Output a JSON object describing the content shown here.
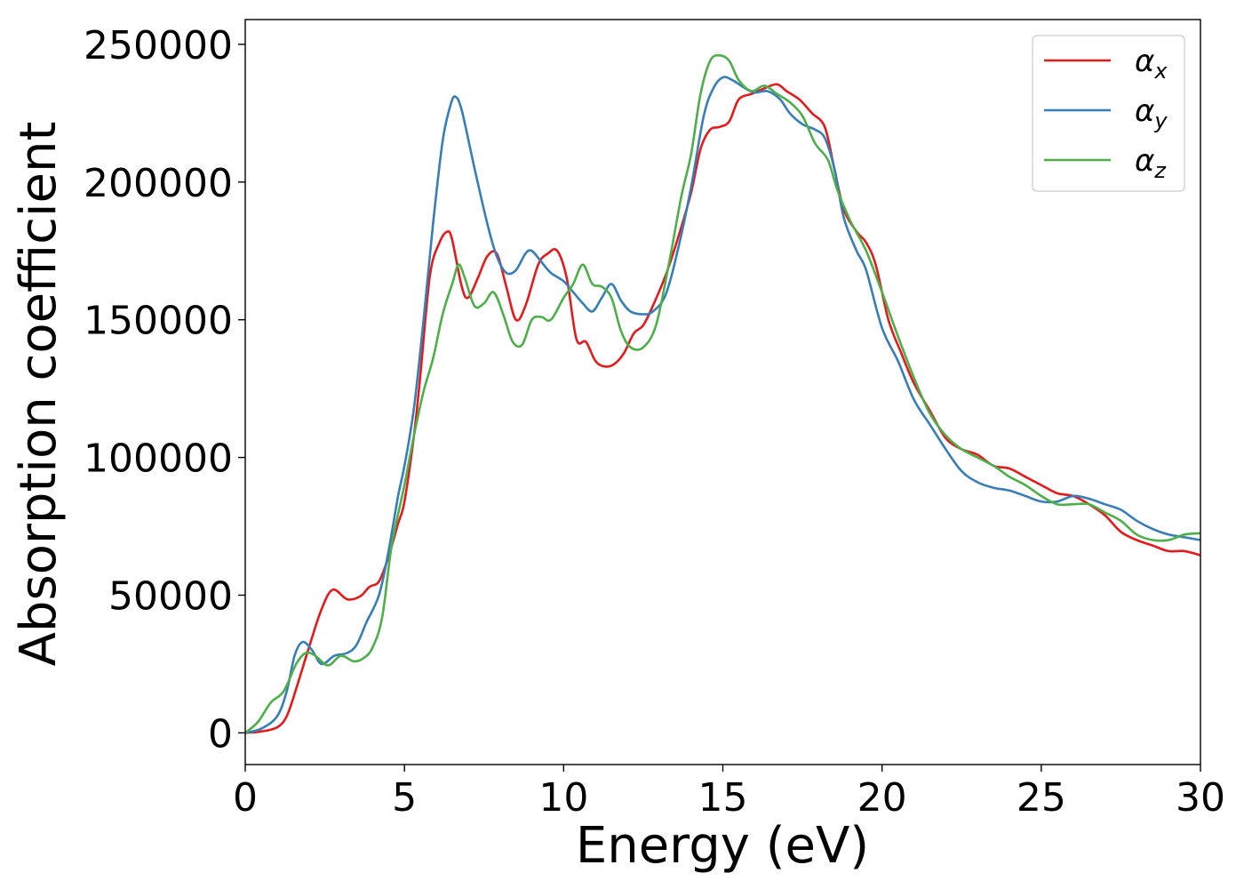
{
  "chart_data": {
    "type": "line",
    "title": "",
    "xlabel": "Energy (eV)",
    "ylabel": "Absorption coefficient",
    "xlim": [
      0,
      30
    ],
    "ylim": [
      -11500,
      259000
    ],
    "xticks": [
      0,
      5,
      10,
      15,
      20,
      25,
      30
    ],
    "xtick_labels": [
      "0",
      "5",
      "10",
      "15",
      "20",
      "25",
      "30"
    ],
    "yticks": [
      0,
      50000,
      100000,
      150000,
      200000,
      250000
    ],
    "ytick_labels": [
      "0",
      "50000",
      "100000",
      "150000",
      "200000",
      "250000"
    ],
    "grid": false,
    "legend_position": "top-right",
    "series": [
      {
        "name": "α",
        "subscript": "x",
        "color": "#e41a1c",
        "points": [
          [
            0,
            0
          ],
          [
            0.5,
            500
          ],
          [
            1,
            2000
          ],
          [
            1.3,
            6000
          ],
          [
            1.6,
            16000
          ],
          [
            2,
            31000
          ],
          [
            2.4,
            45000
          ],
          [
            2.75,
            52000
          ],
          [
            3.2,
            48500
          ],
          [
            3.6,
            49500
          ],
          [
            3.9,
            53000
          ],
          [
            4.2,
            55000
          ],
          [
            4.5,
            64000
          ],
          [
            4.8,
            76000
          ],
          [
            5,
            84000
          ],
          [
            5.3,
            108000
          ],
          [
            5.5,
            130000
          ],
          [
            5.8,
            166000
          ],
          [
            6.1,
            178000
          ],
          [
            6.35,
            182000
          ],
          [
            6.5,
            179000
          ],
          [
            6.8,
            162000
          ],
          [
            7,
            158000
          ],
          [
            7.3,
            165000
          ],
          [
            7.6,
            173000
          ],
          [
            7.9,
            174000
          ],
          [
            8.2,
            162000
          ],
          [
            8.5,
            150000
          ],
          [
            8.8,
            155000
          ],
          [
            9.2,
            170000
          ],
          [
            9.5,
            174000
          ],
          [
            9.8,
            175000
          ],
          [
            10.1,
            165000
          ],
          [
            10.4,
            143000
          ],
          [
            10.7,
            142000
          ],
          [
            11,
            135000
          ],
          [
            11.3,
            133000
          ],
          [
            11.6,
            134000
          ],
          [
            11.9,
            138000
          ],
          [
            12.2,
            145000
          ],
          [
            12.5,
            148000
          ],
          [
            12.8,
            155000
          ],
          [
            13.2,
            166000
          ],
          [
            13.6,
            180000
          ],
          [
            14,
            196000
          ],
          [
            14.3,
            212000
          ],
          [
            14.6,
            219000
          ],
          [
            14.9,
            220000
          ],
          [
            15.2,
            222000
          ],
          [
            15.5,
            230000
          ],
          [
            15.9,
            232000
          ],
          [
            16.3,
            234000
          ],
          [
            16.7,
            235500
          ],
          [
            17,
            233000
          ],
          [
            17.4,
            230000
          ],
          [
            17.8,
            225000
          ],
          [
            18.2,
            220000
          ],
          [
            18.5,
            205000
          ],
          [
            18.8,
            190000
          ],
          [
            19.2,
            182000
          ],
          [
            19.5,
            178000
          ],
          [
            19.8,
            170000
          ],
          [
            20.2,
            150000
          ],
          [
            20.6,
            138000
          ],
          [
            21,
            127000
          ],
          [
            21.5,
            117000
          ],
          [
            22,
            107000
          ],
          [
            22.5,
            103000
          ],
          [
            23,
            101000
          ],
          [
            23.5,
            97000
          ],
          [
            24,
            96000
          ],
          [
            24.5,
            93000
          ],
          [
            25,
            90000
          ],
          [
            25.5,
            87000
          ],
          [
            26,
            86000
          ],
          [
            26.5,
            83000
          ],
          [
            27,
            79000
          ],
          [
            27.5,
            73000
          ],
          [
            28,
            70000
          ],
          [
            28.5,
            68000
          ],
          [
            29,
            66000
          ],
          [
            29.5,
            66000
          ],
          [
            30,
            64500
          ]
        ]
      },
      {
        "name": "α",
        "subscript": "y",
        "color": "#377eb8",
        "points": [
          [
            0,
            0
          ],
          [
            0.5,
            1500
          ],
          [
            1,
            6000
          ],
          [
            1.3,
            15000
          ],
          [
            1.55,
            28000
          ],
          [
            1.8,
            33000
          ],
          [
            2.1,
            30000
          ],
          [
            2.4,
            25000
          ],
          [
            2.8,
            28000
          ],
          [
            3.2,
            29000
          ],
          [
            3.5,
            32000
          ],
          [
            3.8,
            40000
          ],
          [
            4.2,
            50000
          ],
          [
            4.5,
            66000
          ],
          [
            4.8,
            86000
          ],
          [
            5,
            97000
          ],
          [
            5.3,
            118000
          ],
          [
            5.6,
            150000
          ],
          [
            5.9,
            185000
          ],
          [
            6.2,
            215000
          ],
          [
            6.45,
            228000
          ],
          [
            6.6,
            231000
          ],
          [
            6.8,
            226000
          ],
          [
            7.2,
            205000
          ],
          [
            7.6,
            185000
          ],
          [
            7.9,
            173000
          ],
          [
            8.2,
            167000
          ],
          [
            8.5,
            168000
          ],
          [
            8.8,
            174000
          ],
          [
            9,
            175000
          ],
          [
            9.3,
            171000
          ],
          [
            9.6,
            167000
          ],
          [
            10,
            164000
          ],
          [
            10.3,
            160000
          ],
          [
            10.6,
            156000
          ],
          [
            10.9,
            153000
          ],
          [
            11.2,
            158000
          ],
          [
            11.5,
            163000
          ],
          [
            11.8,
            157000
          ],
          [
            12.1,
            153000
          ],
          [
            12.5,
            152000
          ],
          [
            12.8,
            153000
          ],
          [
            13.2,
            159000
          ],
          [
            13.6,
            176000
          ],
          [
            14,
            198000
          ],
          [
            14.4,
            224000
          ],
          [
            14.7,
            234000
          ],
          [
            15,
            238000
          ],
          [
            15.3,
            237000
          ],
          [
            15.7,
            234000
          ],
          [
            16,
            232500
          ],
          [
            16.4,
            233000
          ],
          [
            16.8,
            230000
          ],
          [
            17.1,
            225000
          ],
          [
            17.5,
            221000
          ],
          [
            17.9,
            219000
          ],
          [
            18.2,
            216000
          ],
          [
            18.5,
            205000
          ],
          [
            18.8,
            187000
          ],
          [
            19.2,
            175000
          ],
          [
            19.5,
            168000
          ],
          [
            20,
            147000
          ],
          [
            20.5,
            135000
          ],
          [
            21,
            121000
          ],
          [
            21.5,
            112000
          ],
          [
            22,
            103000
          ],
          [
            22.5,
            95000
          ],
          [
            23,
            91000
          ],
          [
            23.5,
            89000
          ],
          [
            24,
            88000
          ],
          [
            24.5,
            86000
          ],
          [
            25,
            84000
          ],
          [
            25.5,
            84000
          ],
          [
            26,
            86000
          ],
          [
            26.5,
            85000
          ],
          [
            27,
            83000
          ],
          [
            27.5,
            81000
          ],
          [
            28,
            77000
          ],
          [
            28.5,
            74000
          ],
          [
            29,
            72000
          ],
          [
            29.5,
            71000
          ],
          [
            30,
            70000
          ]
        ]
      },
      {
        "name": "α",
        "subscript": "z",
        "color": "#4daf4a",
        "points": [
          [
            0,
            0
          ],
          [
            0.4,
            4000
          ],
          [
            0.8,
            11000
          ],
          [
            1.2,
            15000
          ],
          [
            1.6,
            25000
          ],
          [
            1.9,
            29000
          ],
          [
            2.2,
            28000
          ],
          [
            2.6,
            24500
          ],
          [
            3,
            28000
          ],
          [
            3.4,
            26000
          ],
          [
            3.7,
            27000
          ],
          [
            4,
            31000
          ],
          [
            4.3,
            42000
          ],
          [
            4.6,
            68000
          ],
          [
            5,
            90000
          ],
          [
            5.3,
            108000
          ],
          [
            5.6,
            124000
          ],
          [
            5.9,
            136000
          ],
          [
            6.2,
            152000
          ],
          [
            6.5,
            163000
          ],
          [
            6.7,
            170000
          ],
          [
            6.9,
            165000
          ],
          [
            7.2,
            155000
          ],
          [
            7.5,
            156000
          ],
          [
            7.8,
            160000
          ],
          [
            8.1,
            152000
          ],
          [
            8.4,
            142000
          ],
          [
            8.7,
            141000
          ],
          [
            9,
            150000
          ],
          [
            9.3,
            151000
          ],
          [
            9.6,
            150000
          ],
          [
            10,
            158000
          ],
          [
            10.3,
            163000
          ],
          [
            10.6,
            170000
          ],
          [
            10.9,
            163000
          ],
          [
            11.2,
            162000
          ],
          [
            11.5,
            158000
          ],
          [
            11.8,
            146000
          ],
          [
            12.1,
            140000
          ],
          [
            12.5,
            140000
          ],
          [
            12.9,
            148000
          ],
          [
            13.3,
            170000
          ],
          [
            13.7,
            195000
          ],
          [
            14,
            210000
          ],
          [
            14.3,
            232000
          ],
          [
            14.6,
            244000
          ],
          [
            14.9,
            246000
          ],
          [
            15.2,
            244000
          ],
          [
            15.5,
            237000
          ],
          [
            15.9,
            233000
          ],
          [
            16.3,
            235000
          ],
          [
            16.7,
            232000
          ],
          [
            17.1,
            229000
          ],
          [
            17.5,
            224000
          ],
          [
            17.9,
            214000
          ],
          [
            18.3,
            208000
          ],
          [
            18.6,
            197000
          ],
          [
            19,
            186000
          ],
          [
            19.5,
            175000
          ],
          [
            20,
            160000
          ],
          [
            20.5,
            144000
          ],
          [
            21,
            129000
          ],
          [
            21.5,
            116000
          ],
          [
            22,
            108000
          ],
          [
            22.5,
            103000
          ],
          [
            23,
            100000
          ],
          [
            23.5,
            97000
          ],
          [
            24,
            93000
          ],
          [
            24.5,
            90000
          ],
          [
            25,
            86000
          ],
          [
            25.5,
            83000
          ],
          [
            26,
            83000
          ],
          [
            26.5,
            83000
          ],
          [
            27,
            80000
          ],
          [
            27.5,
            77000
          ],
          [
            28,
            72000
          ],
          [
            28.5,
            70000
          ],
          [
            29,
            70000
          ],
          [
            29.5,
            72000
          ],
          [
            30,
            72500
          ]
        ]
      }
    ]
  }
}
